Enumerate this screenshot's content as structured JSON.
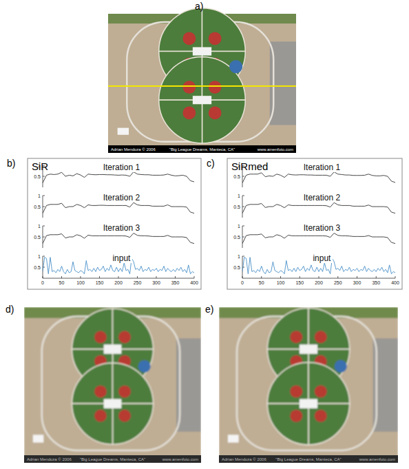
{
  "panels": [
    {
      "label": "a)",
      "caption": [
        "Adrian Mendoza © 2006",
        "\"Big League Dreams, Manteca, CA\"",
        "www.amenfoto.com"
      ]
    },
    {
      "label": "d)",
      "caption": [
        "Adrian Mendoza © 2006",
        "\"Big League Dreams, Manteca, CA\"",
        "www.amenfoto.com"
      ]
    },
    {
      "label": "e)",
      "caption": [
        "Adrian Mendoza © 2006",
        "\"Big League Dreams, Manteca, CA\"",
        "www.amenfoto.com"
      ]
    }
  ],
  "chart_panels": [
    "b)",
    "c)"
  ],
  "chart_data": [
    {
      "type": "line",
      "title": "SiR",
      "xlim": [
        0,
        400
      ],
      "xticks": [
        0,
        50,
        100,
        150,
        200,
        250,
        300,
        350,
        400
      ],
      "ylim": [
        0,
        1
      ],
      "yticks": [
        0.5,
        1
      ],
      "series": [
        {
          "name": "Iteration 1",
          "color": "#333333",
          "x": [
            0,
            10,
            20,
            30,
            40,
            50,
            60,
            70,
            80,
            90,
            100,
            110,
            120,
            130,
            140,
            150,
            160,
            170,
            180,
            190,
            200,
            210,
            220,
            230,
            240,
            250,
            260,
            270,
            280,
            290,
            300,
            310,
            320,
            330,
            340,
            350,
            360,
            370,
            380,
            390,
            400
          ],
          "values": [
            0.2,
            0.55,
            0.6,
            0.58,
            0.6,
            0.68,
            0.5,
            0.55,
            0.52,
            0.62,
            0.56,
            0.45,
            0.6,
            0.58,
            0.57,
            0.58,
            0.58,
            0.57,
            0.57,
            0.56,
            0.55,
            0.56,
            0.55,
            0.5,
            0.7,
            0.6,
            0.58,
            0.57,
            0.57,
            0.55,
            0.55,
            0.55,
            0.56,
            0.6,
            0.55,
            0.52,
            0.53,
            0.55,
            0.5,
            0.3,
            0.25
          ]
        },
        {
          "name": "Iteration 2",
          "color": "#333333",
          "x": [
            0,
            10,
            20,
            30,
            40,
            50,
            60,
            70,
            80,
            90,
            100,
            110,
            120,
            130,
            140,
            150,
            160,
            170,
            180,
            190,
            200,
            210,
            220,
            230,
            240,
            250,
            260,
            270,
            280,
            290,
            300,
            310,
            320,
            330,
            340,
            350,
            360,
            370,
            380,
            390,
            400
          ],
          "values": [
            0.2,
            0.55,
            0.6,
            0.6,
            0.6,
            0.65,
            0.45,
            0.5,
            0.5,
            0.6,
            0.55,
            0.45,
            0.58,
            0.55,
            0.55,
            0.56,
            0.56,
            0.55,
            0.55,
            0.55,
            0.55,
            0.55,
            0.55,
            0.48,
            0.68,
            0.58,
            0.55,
            0.55,
            0.55,
            0.52,
            0.52,
            0.52,
            0.52,
            0.58,
            0.5,
            0.5,
            0.5,
            0.5,
            0.48,
            0.25,
            0.2
          ]
        },
        {
          "name": "Iteration 3",
          "color": "#333333",
          "x": [
            0,
            10,
            20,
            30,
            40,
            50,
            60,
            70,
            80,
            90,
            100,
            110,
            120,
            130,
            140,
            150,
            160,
            170,
            180,
            190,
            200,
            210,
            220,
            230,
            240,
            250,
            260,
            270,
            280,
            290,
            300,
            310,
            320,
            330,
            340,
            350,
            360,
            370,
            380,
            390,
            400
          ],
          "values": [
            0.2,
            0.56,
            0.6,
            0.6,
            0.6,
            0.64,
            0.45,
            0.5,
            0.5,
            0.6,
            0.55,
            0.44,
            0.58,
            0.55,
            0.55,
            0.55,
            0.55,
            0.55,
            0.55,
            0.55,
            0.55,
            0.55,
            0.54,
            0.48,
            0.67,
            0.57,
            0.55,
            0.55,
            0.54,
            0.52,
            0.52,
            0.52,
            0.52,
            0.57,
            0.5,
            0.5,
            0.5,
            0.5,
            0.47,
            0.25,
            0.2
          ]
        },
        {
          "name": "input",
          "color": "#4a90c8",
          "x": [
            0,
            5,
            10,
            15,
            20,
            25,
            30,
            35,
            40,
            45,
            50,
            55,
            60,
            65,
            70,
            75,
            80,
            85,
            90,
            95,
            100,
            105,
            110,
            115,
            120,
            125,
            130,
            135,
            140,
            145,
            150,
            155,
            160,
            165,
            170,
            175,
            180,
            185,
            190,
            195,
            200,
            205,
            210,
            215,
            220,
            225,
            230,
            235,
            240,
            245,
            250,
            255,
            260,
            265,
            270,
            275,
            280,
            285,
            290,
            295,
            300,
            305,
            310,
            315,
            320,
            325,
            330,
            335,
            340,
            345,
            350,
            355,
            360,
            365,
            370,
            375,
            380,
            385,
            390,
            395,
            400
          ],
          "values": [
            0.3,
            0.95,
            0.9,
            0.2,
            0.95,
            0.3,
            0.35,
            0.25,
            0.4,
            0.3,
            0.55,
            0.3,
            0.2,
            0.4,
            0.25,
            0.3,
            0.75,
            0.35,
            0.3,
            0.25,
            0.35,
            0.3,
            0.2,
            0.8,
            0.35,
            0.4,
            0.3,
            0.45,
            0.3,
            0.5,
            0.35,
            0.4,
            0.55,
            0.3,
            0.45,
            0.35,
            0.6,
            0.35,
            0.3,
            0.5,
            0.3,
            0.45,
            0.3,
            0.7,
            0.35,
            0.4,
            0.2,
            0.9,
            0.75,
            0.4,
            0.45,
            0.35,
            0.55,
            0.3,
            0.4,
            0.35,
            0.5,
            0.3,
            0.4,
            0.35,
            0.45,
            0.3,
            0.4,
            0.35,
            0.55,
            0.3,
            0.45,
            0.35,
            0.3,
            0.4,
            0.3,
            0.45,
            0.35,
            0.5,
            0.3,
            0.4,
            0.25,
            0.6,
            0.2,
            0.3,
            0.25
          ]
        }
      ]
    },
    {
      "type": "line",
      "title": "SiRmed",
      "xlim": [
        0,
        400
      ],
      "xticks": [
        0,
        50,
        100,
        150,
        200,
        250,
        300,
        350,
        400
      ],
      "ylim": [
        0,
        1
      ],
      "yticks": [
        0.5,
        1
      ],
      "series": [
        {
          "name": "Iteration 1",
          "color": "#333333",
          "x": [
            0,
            10,
            20,
            30,
            40,
            50,
            60,
            70,
            80,
            90,
            100,
            110,
            120,
            130,
            140,
            150,
            160,
            170,
            180,
            190,
            200,
            210,
            220,
            230,
            240,
            250,
            260,
            270,
            280,
            290,
            300,
            310,
            320,
            330,
            340,
            350,
            360,
            370,
            380,
            390,
            400
          ],
          "values": [
            0.2,
            0.55,
            0.6,
            0.6,
            0.6,
            0.66,
            0.48,
            0.52,
            0.5,
            0.6,
            0.55,
            0.45,
            0.6,
            0.57,
            0.56,
            0.57,
            0.57,
            0.56,
            0.56,
            0.55,
            0.55,
            0.55,
            0.55,
            0.5,
            0.7,
            0.6,
            0.58,
            0.56,
            0.56,
            0.54,
            0.54,
            0.54,
            0.55,
            0.6,
            0.54,
            0.52,
            0.52,
            0.54,
            0.5,
            0.28,
            0.22
          ]
        },
        {
          "name": "Iteration 2",
          "color": "#333333",
          "x": [
            0,
            10,
            20,
            30,
            40,
            50,
            60,
            70,
            80,
            90,
            100,
            110,
            120,
            130,
            140,
            150,
            160,
            170,
            180,
            190,
            200,
            210,
            220,
            230,
            240,
            250,
            260,
            270,
            280,
            290,
            300,
            310,
            320,
            330,
            340,
            350,
            360,
            370,
            380,
            390,
            400
          ],
          "values": [
            0.2,
            0.55,
            0.6,
            0.6,
            0.6,
            0.64,
            0.46,
            0.5,
            0.5,
            0.6,
            0.55,
            0.45,
            0.58,
            0.55,
            0.55,
            0.55,
            0.55,
            0.55,
            0.55,
            0.55,
            0.55,
            0.55,
            0.54,
            0.48,
            0.68,
            0.58,
            0.55,
            0.55,
            0.55,
            0.52,
            0.52,
            0.52,
            0.52,
            0.57,
            0.5,
            0.5,
            0.5,
            0.5,
            0.48,
            0.25,
            0.2
          ]
        },
        {
          "name": "Iteration 3",
          "color": "#333333",
          "x": [
            0,
            10,
            20,
            30,
            40,
            50,
            60,
            70,
            80,
            90,
            100,
            110,
            120,
            130,
            140,
            150,
            160,
            170,
            180,
            190,
            200,
            210,
            220,
            230,
            240,
            250,
            260,
            270,
            280,
            290,
            300,
            310,
            320,
            330,
            340,
            350,
            360,
            370,
            380,
            390,
            400
          ],
          "values": [
            0.2,
            0.56,
            0.6,
            0.6,
            0.6,
            0.63,
            0.46,
            0.5,
            0.5,
            0.6,
            0.55,
            0.44,
            0.58,
            0.55,
            0.55,
            0.55,
            0.55,
            0.55,
            0.55,
            0.55,
            0.55,
            0.55,
            0.54,
            0.48,
            0.67,
            0.57,
            0.55,
            0.55,
            0.54,
            0.52,
            0.52,
            0.52,
            0.52,
            0.56,
            0.5,
            0.5,
            0.5,
            0.5,
            0.47,
            0.25,
            0.2
          ]
        },
        {
          "name": "input",
          "color": "#4a90c8",
          "x": [
            0,
            5,
            10,
            15,
            20,
            25,
            30,
            35,
            40,
            45,
            50,
            55,
            60,
            65,
            70,
            75,
            80,
            85,
            90,
            95,
            100,
            105,
            110,
            115,
            120,
            125,
            130,
            135,
            140,
            145,
            150,
            155,
            160,
            165,
            170,
            175,
            180,
            185,
            190,
            195,
            200,
            205,
            210,
            215,
            220,
            225,
            230,
            235,
            240,
            245,
            250,
            255,
            260,
            265,
            270,
            275,
            280,
            285,
            290,
            295,
            300,
            305,
            310,
            315,
            320,
            325,
            330,
            335,
            340,
            345,
            350,
            355,
            360,
            365,
            370,
            375,
            380,
            385,
            390,
            395,
            400
          ],
          "values": [
            0.3,
            0.95,
            0.9,
            0.2,
            0.95,
            0.3,
            0.35,
            0.25,
            0.4,
            0.3,
            0.55,
            0.3,
            0.2,
            0.4,
            0.25,
            0.3,
            0.75,
            0.35,
            0.3,
            0.25,
            0.35,
            0.3,
            0.2,
            0.8,
            0.35,
            0.4,
            0.3,
            0.45,
            0.3,
            0.5,
            0.35,
            0.4,
            0.55,
            0.3,
            0.45,
            0.35,
            0.6,
            0.35,
            0.3,
            0.5,
            0.3,
            0.45,
            0.3,
            0.7,
            0.35,
            0.4,
            0.2,
            0.9,
            0.75,
            0.4,
            0.45,
            0.35,
            0.55,
            0.3,
            0.4,
            0.35,
            0.5,
            0.3,
            0.4,
            0.35,
            0.45,
            0.3,
            0.4,
            0.35,
            0.55,
            0.3,
            0.45,
            0.35,
            0.3,
            0.4,
            0.3,
            0.45,
            0.35,
            0.5,
            0.3,
            0.4,
            0.25,
            0.6,
            0.2,
            0.3,
            0.25
          ]
        }
      ]
    }
  ]
}
